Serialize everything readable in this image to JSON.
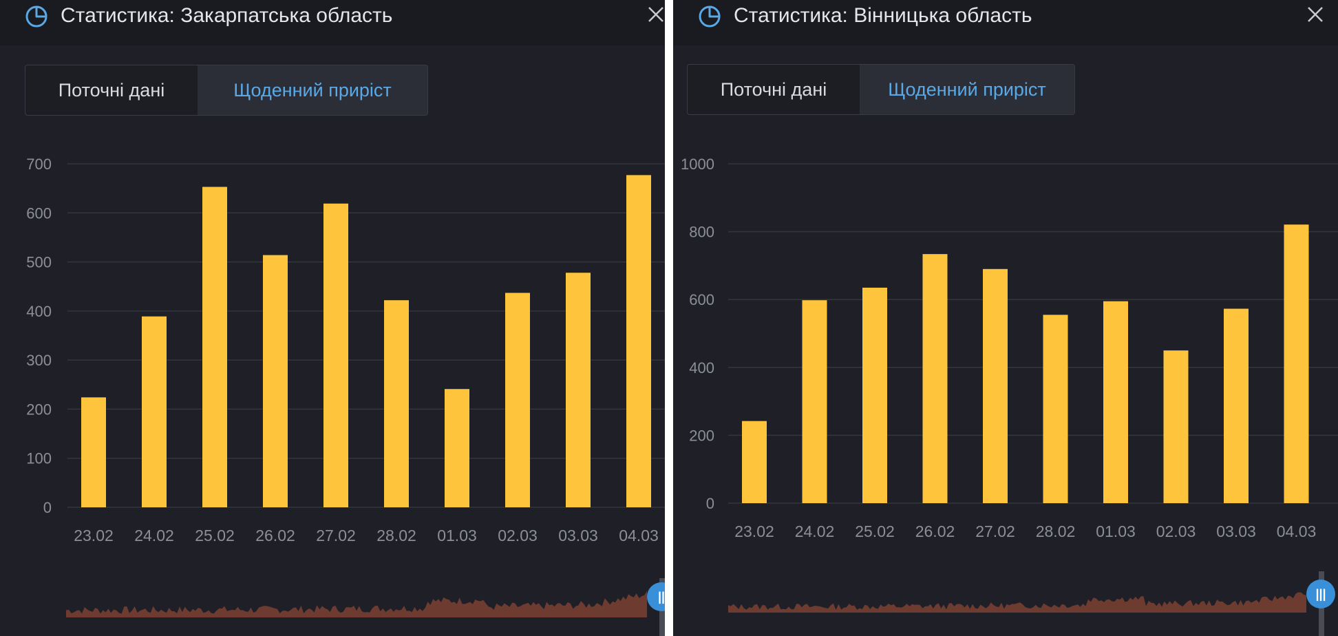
{
  "panels": [
    {
      "title": "Статистика: Закарпатська область",
      "tabs": [
        "Поточні дані",
        "Щоденний приріст"
      ],
      "active_tab": "Щоденний приріст",
      "navigator_handle": "||"
    },
    {
      "title": "Статистика: Вінницька область",
      "tabs": [
        "Поточні дані",
        "Щоденний приріст"
      ],
      "active_tab": "Щоденний приріст",
      "navigator_handle": "|||"
    }
  ],
  "colors": {
    "background": "#1f2027",
    "bar": "#fec53c",
    "active_tab_text": "#5aa9e6",
    "navigator_area": "#6e3b30"
  },
  "icons": {
    "title": "pie-chart-icon",
    "close": "close-icon"
  },
  "chart_data": [
    {
      "type": "bar",
      "categories": [
        "23.02",
        "24.02",
        "25.02",
        "26.02",
        "27.02",
        "28.02",
        "01.03",
        "02.03",
        "03.03",
        "04.03"
      ],
      "values": [
        224,
        389,
        653,
        514,
        619,
        422,
        241,
        437,
        478,
        677
      ],
      "ylim": [
        0,
        700
      ],
      "yticks": [
        0,
        100,
        200,
        300,
        400,
        500,
        600,
        700
      ],
      "grid": true
    },
    {
      "type": "bar",
      "categories": [
        "23.02",
        "24.02",
        "25.02",
        "26.02",
        "27.02",
        "28.02",
        "01.03",
        "02.03",
        "03.03",
        "04.03"
      ],
      "values": [
        242,
        598,
        635,
        734,
        690,
        555,
        595,
        450,
        573,
        821
      ],
      "ylim": [
        0,
        1000
      ],
      "yticks": [
        0,
        200,
        400,
        600,
        800,
        1000
      ],
      "grid": true
    }
  ]
}
